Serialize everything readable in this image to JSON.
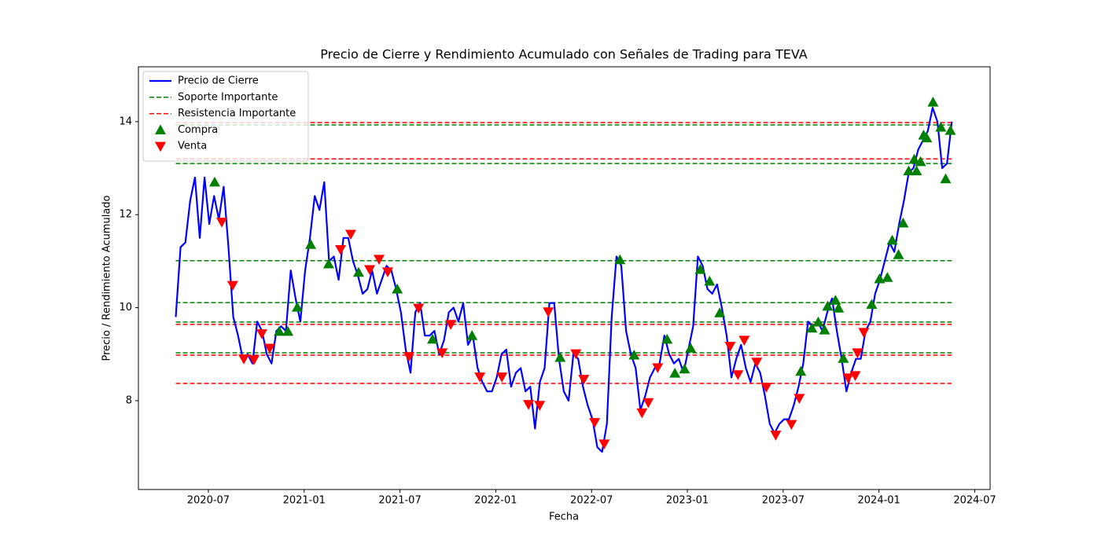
{
  "chart_data": {
    "type": "line",
    "title": "Precio de Cierre y Rendimiento Acumulado con Señales de Trading para TEVA",
    "x_label": "Fecha",
    "y_label": "Precio / Rendimiento Acumulado",
    "xlim": [
      2020.135,
      2024.58
    ],
    "ylim": [
      6.09,
      15.18
    ],
    "xticks": [
      {
        "value": 2020.5,
        "label": "2020-07"
      },
      {
        "value": 2021.0,
        "label": "2021-01"
      },
      {
        "value": 2021.5,
        "label": "2021-07"
      },
      {
        "value": 2022.0,
        "label": "2022-01"
      },
      {
        "value": 2022.5,
        "label": "2022-07"
      },
      {
        "value": 2023.0,
        "label": "2023-01"
      },
      {
        "value": 2023.5,
        "label": "2023-07"
      },
      {
        "value": 2024.0,
        "label": "2024-01"
      },
      {
        "value": 2024.5,
        "label": "2024-07"
      }
    ],
    "yticks": [
      8,
      10,
      12,
      14
    ],
    "grid": false,
    "legend": "upper left",
    "series": [
      {
        "name": "Precio de Cierre",
        "type": "line",
        "color": "#0000ff",
        "x": [
          2020.33,
          2020.355,
          2020.38,
          2020.405,
          2020.43,
          2020.455,
          2020.48,
          2020.505,
          2020.53,
          2020.555,
          2020.58,
          2020.605,
          2020.63,
          2020.655,
          2020.68,
          2020.705,
          2020.73,
          2020.755,
          2020.78,
          2020.805,
          2020.83,
          2020.855,
          2020.88,
          2020.905,
          2020.93,
          2020.955,
          2020.98,
          2021.005,
          2021.03,
          2021.055,
          2021.08,
          2021.105,
          2021.13,
          2021.155,
          2021.18,
          2021.205,
          2021.23,
          2021.255,
          2021.28,
          2021.305,
          2021.33,
          2021.355,
          2021.38,
          2021.405,
          2021.43,
          2021.455,
          2021.48,
          2021.505,
          2021.53,
          2021.555,
          2021.58,
          2021.605,
          2021.63,
          2021.655,
          2021.68,
          2021.705,
          2021.73,
          2021.755,
          2021.78,
          2021.805,
          2021.83,
          2021.855,
          2021.88,
          2021.905,
          2021.93,
          2021.955,
          2021.98,
          2022.005,
          2022.03,
          2022.055,
          2022.08,
          2022.105,
          2022.13,
          2022.155,
          2022.18,
          2022.205,
          2022.23,
          2022.255,
          2022.28,
          2022.305,
          2022.33,
          2022.355,
          2022.38,
          2022.405,
          2022.43,
          2022.455,
          2022.48,
          2022.505,
          2022.53,
          2022.555,
          2022.58,
          2022.605,
          2022.63,
          2022.655,
          2022.68,
          2022.705,
          2022.73,
          2022.755,
          2022.78,
          2022.805,
          2022.83,
          2022.855,
          2022.88,
          2022.905,
          2022.93,
          2022.955,
          2022.98,
          2023.005,
          2023.03,
          2023.055,
          2023.08,
          2023.105,
          2023.13,
          2023.155,
          2023.18,
          2023.205,
          2023.23,
          2023.255,
          2023.28,
          2023.305,
          2023.33,
          2023.355,
          2023.38,
          2023.405,
          2023.43,
          2023.455,
          2023.48,
          2023.505,
          2023.53,
          2023.555,
          2023.58,
          2023.605,
          2023.63,
          2023.655,
          2023.68,
          2023.705,
          2023.73,
          2023.755,
          2023.78,
          2023.805,
          2023.83,
          2023.855,
          2023.88,
          2023.905,
          2023.93,
          2023.955,
          2023.98,
          2024.005,
          2024.03,
          2024.055,
          2024.08,
          2024.105,
          2024.13,
          2024.155,
          2024.18,
          2024.205,
          2024.23,
          2024.255,
          2024.28,
          2024.305,
          2024.33,
          2024.355,
          2024.38
        ],
        "values": [
          9.8,
          11.3,
          11.4,
          12.3,
          12.8,
          11.5,
          12.8,
          11.8,
          12.4,
          11.9,
          12.6,
          11.3,
          9.8,
          9.4,
          8.9,
          9.0,
          8.8,
          9.7,
          9.5,
          9.0,
          8.8,
          9.5,
          9.6,
          9.5,
          10.8,
          10.2,
          9.7,
          10.8,
          11.5,
          12.4,
          12.1,
          12.7,
          11.0,
          11.1,
          10.6,
          11.5,
          11.5,
          11.0,
          10.7,
          10.3,
          10.4,
          10.8,
          10.3,
          10.6,
          10.9,
          10.8,
          10.4,
          9.9,
          9.1,
          8.6,
          9.9,
          10.1,
          9.4,
          9.4,
          9.5,
          9.0,
          9.3,
          9.9,
          10.0,
          9.7,
          10.1,
          9.2,
          9.4,
          8.7,
          8.4,
          8.2,
          8.2,
          8.5,
          9.0,
          9.1,
          8.3,
          8.6,
          8.7,
          8.2,
          8.3,
          7.4,
          8.4,
          8.7,
          10.1,
          10.1,
          8.9,
          8.2,
          8.0,
          9.0,
          8.9,
          8.3,
          7.9,
          7.6,
          7.0,
          6.9,
          7.5,
          9.8,
          11.1,
          10.9,
          9.5,
          9.0,
          8.7,
          7.8,
          8.1,
          8.5,
          8.7,
          8.8,
          9.4,
          9.0,
          8.8,
          8.9,
          8.6,
          9.1,
          9.6,
          11.1,
          10.9,
          10.4,
          10.3,
          10.5,
          10.0,
          9.4,
          8.5,
          8.9,
          9.2,
          8.7,
          8.4,
          8.8,
          8.6,
          8.1,
          7.5,
          7.3,
          7.5,
          7.6,
          7.6,
          7.9,
          8.3,
          8.8,
          9.7,
          9.6,
          9.7,
          9.5,
          9.9,
          10.2,
          9.5,
          8.9,
          8.2,
          8.6,
          8.9,
          8.9,
          9.5,
          9.7,
          10.3,
          10.6,
          11.0,
          11.4,
          11.2,
          11.8,
          12.3,
          12.9,
          13.0,
          13.4,
          13.6,
          13.8,
          14.3,
          14.0,
          13.0,
          13.1,
          14.0
        ]
      },
      {
        "name": "Soporte Importante",
        "type": "hline",
        "color": "#008000",
        "values": [
          13.93,
          13.1,
          11.01,
          10.11,
          9.69,
          9.03
        ]
      },
      {
        "name": "Resistencia Importante",
        "type": "hline",
        "color": "#ff0000",
        "values": [
          13.98,
          13.2,
          9.64,
          8.98,
          8.37
        ]
      },
      {
        "name": "Compra",
        "type": "scatter",
        "marker": "triangle-up",
        "color": "#008000",
        "x": [
          2020.533,
          2020.964,
          2021.034,
          2021.128,
          2021.284,
          2021.486,
          2020.87,
          2020.915,
          2021.67,
          2021.876,
          2022.336,
          2022.648,
          2022.722,
          2022.894,
          2022.935,
          2022.985,
          2023.017,
          2023.067,
          2023.116,
          2023.169,
          2023.592,
          2023.65,
          2023.683,
          2023.716,
          2023.732,
          2023.773,
          2023.789,
          2023.814,
          2023.962,
          2024.003,
          2024.044,
          2024.069,
          2024.102,
          2024.126,
          2024.155,
          2024.184,
          2024.196,
          2024.217,
          2024.233,
          2024.249,
          2024.282,
          2024.323,
          2024.348,
          2024.373
        ],
        "values": [
          12.7,
          10.01,
          11.36,
          10.94,
          10.76,
          10.4,
          9.49,
          9.49,
          9.32,
          9.4,
          8.93,
          11.03,
          8.98,
          9.32,
          8.59,
          8.68,
          9.13,
          10.82,
          10.57,
          9.89,
          8.63,
          9.56,
          9.69,
          9.52,
          10.03,
          10.16,
          9.99,
          8.91,
          10.07,
          10.62,
          10.65,
          11.45,
          11.14,
          11.82,
          12.94,
          13.19,
          12.94,
          13.14,
          13.71,
          13.65,
          14.42,
          13.88,
          12.77,
          13.81
        ]
      },
      {
        "name": "Venta",
        "type": "scatter",
        "marker": "triangle-down",
        "color": "#ff0000",
        "x": [
          2020.57,
          2020.627,
          2020.685,
          2020.738,
          2020.779,
          2020.82,
          2021.19,
          2021.243,
          2021.342,
          2021.391,
          2021.436,
          2021.547,
          2021.597,
          2021.72,
          2021.765,
          2021.917,
          2022.032,
          2022.171,
          2022.229,
          2022.274,
          2022.418,
          2022.459,
          2022.516,
          2022.566,
          2022.763,
          2022.796,
          2022.845,
          2023.223,
          2023.264,
          2023.297,
          2023.362,
          2023.412,
          2023.461,
          2023.543,
          2023.584,
          2023.839,
          2023.876,
          2023.888,
          2023.921
        ],
        "values": [
          11.84,
          10.48,
          8.9,
          8.88,
          9.44,
          9.13,
          11.25,
          11.58,
          10.82,
          11.04,
          10.77,
          8.95,
          9.99,
          9.03,
          9.64,
          8.51,
          8.51,
          7.92,
          7.9,
          9.91,
          9.01,
          8.46,
          7.53,
          7.07,
          7.74,
          7.96,
          8.71,
          9.17,
          8.56,
          9.3,
          8.83,
          8.29,
          7.26,
          7.49,
          8.05,
          8.49,
          8.54,
          9.03,
          9.47
        ]
      }
    ]
  }
}
